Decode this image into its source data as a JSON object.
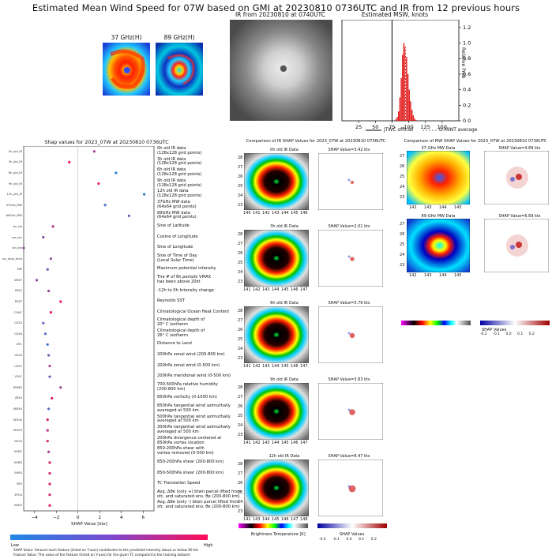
{
  "title": "Estimated Mean Wind Speed for 07W based on GMI at 20230810 0736UTC and IR from 12 previous hours",
  "top_panels": {
    "gmi37_title": "37 GHz(H)",
    "gmi89_title": "89 GHz(H)",
    "ir_title": "IR from 20230810 at 0740UTC",
    "msw_title": "Estimated MSW, knots"
  },
  "histogram": {
    "ylabel": "Relative Prob",
    "legend_jtwc": "JTWC official",
    "legend_dmint": "D-MINT average"
  },
  "shap_title": "Shap values for 2023_07W at 20230810 0736UTC",
  "shap_xlabel": "SHAP Value [kts]",
  "colorbar": {
    "low": "Low",
    "high": "High"
  },
  "footnote1": "SHAP Value: Amount each feature (listed on Y-axis) contributes to the predicted intensity above or below 60 kts",
  "footnote2": "Feature Value: The value of the feature (listed on Y-axis) for the given TC compared to the training dataset",
  "ir_compare_title": "Comparison of IR SHAP Values for 2023_07W at 20230810 0736UTC",
  "mw_compare_title": "Comparison of MW SHAP Values for 2023_07W at 20230810 0736UTC",
  "ir_panels": [
    {
      "title": "0h old IR Data",
      "shap": "SHAP Value=3.42 kts",
      "yticks": [
        "28",
        "27",
        "26",
        "25",
        "24",
        "23"
      ],
      "xticks": [
        "140",
        "141",
        "142",
        "143",
        "144",
        "145",
        "146"
      ]
    },
    {
      "title": "3h old IR Data",
      "shap": "SHAP Value=2.01 kts",
      "yticks": [
        "28",
        "27",
        "26",
        "25",
        "24",
        "23"
      ],
      "xticks": [
        "141",
        "142",
        "143",
        "144",
        "145",
        "146",
        "147"
      ]
    },
    {
      "title": "6h old IR Data",
      "shap": "SHAP Value=5.79 kts",
      "yticks": [
        "28",
        "27",
        "26",
        "25",
        "24",
        "23"
      ],
      "xticks": [
        "141",
        "142",
        "143",
        "144",
        "145",
        "146",
        "147"
      ]
    },
    {
      "title": "9h old IR Data",
      "shap": "SHAP Value=3.83 kts",
      "yticks": [
        "28",
        "27",
        "26",
        "25",
        "24",
        "23"
      ],
      "xticks": [
        "141",
        "142",
        "143",
        "144",
        "145",
        "146",
        "147"
      ]
    },
    {
      "title": "12h old IR Data",
      "shap": "SHAP Value=8.47 kts",
      "yticks": [
        "28",
        "27",
        "26",
        "25",
        "24",
        "23"
      ],
      "xticks": [
        "142",
        "143",
        "144",
        "145",
        "146",
        "147",
        "148"
      ]
    }
  ],
  "mw_panels": [
    {
      "title": "37-GHz MW Data",
      "shap": "SHAP Value=4.69 kts",
      "yticks": [
        "27",
        "26",
        "25",
        "24",
        "23"
      ],
      "xticks": [
        "142",
        "143",
        "144",
        "145"
      ]
    },
    {
      "title": "89-GHz MW Data",
      "shap": "SHAP Value=6.69 kts",
      "yticks": [
        "27",
        "26",
        "25",
        "24",
        "23"
      ],
      "xticks": [
        "142",
        "143",
        "144",
        "145"
      ]
    }
  ],
  "bt_label": "Brightness Temperature [K]",
  "shap_values_label": "SHAP Values",
  "shap_cb_ticks": [
    "-0.2",
    "-0.1",
    "0.0",
    "0.1",
    "0.2"
  ],
  "chart_data": [
    {
      "type": "bar",
      "title": "Estimated MSW, knots",
      "ylabel": "Relative Prob",
      "xlim": [
        0,
        175
      ],
      "ylim": [
        0,
        1.3
      ],
      "xticks": [
        25,
        50,
        75,
        100,
        125,
        150
      ],
      "yticks": [
        0.0,
        0.2,
        0.4,
        0.6,
        0.8,
        1.0,
        1.2
      ],
      "jtwc_official": 75,
      "dmint_average": 95,
      "bins": [
        80,
        82,
        84,
        86,
        88,
        90,
        92,
        94,
        96,
        98,
        100,
        102,
        104,
        106,
        108,
        110
      ],
      "values": [
        0.02,
        0.05,
        0.12,
        0.3,
        0.55,
        0.85,
        1.0,
        0.95,
        0.82,
        0.6,
        0.4,
        0.25,
        0.14,
        0.07,
        0.03,
        0.01
      ],
      "colors": {
        "bars": "#e01414",
        "jtwc": "#000000",
        "dmint": "#777777"
      }
    },
    {
      "type": "scatter",
      "title": "Shap values for 2023_07W at 20230810 0736UTC",
      "xlabel": "SHAP Value [kts]",
      "xlim": [
        -5,
        7
      ],
      "xticks": [
        -4,
        -2,
        0,
        2,
        4,
        6
      ],
      "features": [
        {
          "short": "0h_old_IR",
          "label": "0h old IR data\n(128x128 grid points)",
          "shap": 1.5,
          "fv": 0.6
        },
        {
          "short": "3h_old_IR",
          "label": "3h old IR data\n(128x128 grid points)",
          "shap": -0.8,
          "fv": 0.95
        },
        {
          "short": "6h_old_IR",
          "label": "6h old IR data\n(128x128 grid points)",
          "shap": 3.5,
          "fv": 0.05
        },
        {
          "short": "9h_old_IR",
          "label": "9h old IR data\n(128x128 grid points)",
          "shap": 1.9,
          "fv": 0.9
        },
        {
          "short": "12h_old_IR",
          "label": "12h old IR data\n(128x128 grid points)",
          "shap": 6.1,
          "fv": 0.1
        },
        {
          "short": "37GHz_MW",
          "label": "37GHz MW data\n(64x64 grid points)",
          "shap": 2.5,
          "fv": 0.2
        },
        {
          "short": "89GHz_MW",
          "label": "89GHz MW data\n(64x64 grid points)",
          "shap": 4.7,
          "fv": 0.4
        },
        {
          "short": "sin_lat",
          "label": "Sine of Latitude",
          "shap": -2.3,
          "fv": 0.65
        },
        {
          "short": "cos_lon",
          "label": "Cosine of Longitude",
          "shap": -3.2,
          "fv": 0.45
        },
        {
          "short": "sin_lon",
          "label": "Sine of Longitude",
          "shap": -5.0,
          "fv": 0.5
        },
        {
          "short": "sin_local_time",
          "label": "Sine of Time of Day\n(Local Solar Time)",
          "shap": -2.5,
          "fv": 0.5
        },
        {
          "short": "MPI",
          "label": "Maximum potential intensity",
          "shap": -2.8,
          "fv": 0.3
        },
        {
          "short": "VMXT",
          "label": "The # of 6h periods VMAX\nhas been above 20kt",
          "shap": -3.8,
          "fv": 0.5
        },
        {
          "short": "DELV",
          "label": "-12h to 0h Intensity change",
          "shap": -2.7,
          "fv": 0.55
        },
        {
          "short": "RSST",
          "label": "Reynolds SST",
          "shap": -1.6,
          "fv": 0.97
        },
        {
          "short": "COHC",
          "label": "Climatological Ocean Heat Content",
          "shap": -2.5,
          "fv": 0.92
        },
        {
          "short": "CD20",
          "label": "Climatological depth of\n20° C isotherm",
          "shap": -3.2,
          "fv": 0.3
        },
        {
          "short": "CD26",
          "label": "Climatological depth of\n26° C isotherm",
          "shap": -3.0,
          "fv": 0.25
        },
        {
          "short": "DTL",
          "label": "Distance to Land",
          "shap": -2.8,
          "fv": 0.15
        },
        {
          "short": "U200",
          "label": "200hPa zonal wind (200-800 km)",
          "shap": -2.7,
          "fv": 0.35
        },
        {
          "short": "U20C",
          "label": "200hPa zonal wind (0-500 km)",
          "shap": -2.6,
          "fv": 0.6
        },
        {
          "short": "V20C",
          "label": "200hPa meridional wind (0-500 km)",
          "shap": -2.6,
          "fv": 0.3
        },
        {
          "short": "RHMD",
          "label": "700-500hPa relative humidity\n(200-800 km)",
          "shap": -1.6,
          "fv": 0.55
        },
        {
          "short": "Z850",
          "label": "850hPa vorticity (0-1000 km)",
          "shap": -2.4,
          "fv": 0.85
        },
        {
          "short": "VE850",
          "label": "850hPa tangential wind azimuthally\naveraged at 500 km",
          "shap": -2.7,
          "fv": 0.25
        },
        {
          "short": "VE500",
          "label": "500hPa tangential wind azimuthally\naveraged at 500 km",
          "shap": -2.8,
          "fv": 0.85
        },
        {
          "short": "VE300",
          "label": "300hPa tangential wind azimuthally\naveraged at 500 km",
          "shap": -2.8,
          "fv": 0.7
        },
        {
          "short": "D200",
          "label": "200hPa divergence centered at\n850hPa vortex location",
          "shap": -2.8,
          "fv": 0.82
        },
        {
          "short": "SHDZ",
          "label": "850-200hPa shear with\nvortex removed (0-500 km)",
          "shap": -2.7,
          "fv": 0.6
        },
        {
          "short": "SHRD",
          "label": "850-200hPa shear (200-800 km)",
          "shap": -2.6,
          "fv": 0.88
        },
        {
          "short": "SHRS",
          "label": "850-500hPa shear (200-800 km)",
          "shap": -2.6,
          "fv": 0.8
        },
        {
          "short": "SPD",
          "label": "TC Translation Speed",
          "shap": -2.6,
          "fv": 0.85
        },
        {
          "short": "EPOS",
          "label": "Avg. Δθe (only +) btwn parcel lifted from\nsfc. and saturated env. θe (200-800 km)",
          "shap": -2.6,
          "fv": 0.8
        },
        {
          "short": "ENEG",
          "label": "Avg. Δθe (only -) btwn parcel lifted from\nsfc. and saturated env. θe (200-800 km)",
          "shap": -2.6,
          "fv": 0.95
        }
      ],
      "colors": {
        "low": "#1e88e5",
        "high": "#ff0d57"
      }
    }
  ]
}
